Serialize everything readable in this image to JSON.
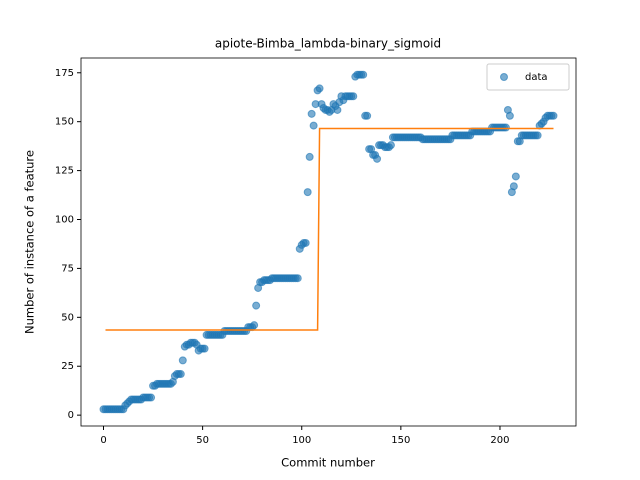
{
  "chart_data": {
    "type": "scatter",
    "title": "apiote-Bimba_lambda-binary_sigmoid",
    "xlabel": "Commit number",
    "ylabel": "Number of instance of a feature",
    "xlim": [
      -11.35,
      238.35
    ],
    "ylim": [
      -5.55,
      182.55
    ],
    "xticks": [
      0,
      50,
      100,
      150,
      200
    ],
    "yticks": [
      0,
      25,
      50,
      75,
      100,
      125,
      150,
      175
    ],
    "legend": "upper right",
    "series": [
      {
        "name": "data",
        "type": "scatter",
        "color": "#1f77b4",
        "x": [
          0,
          1,
          2,
          3,
          4,
          5,
          6,
          7,
          8,
          9,
          10,
          11,
          12,
          13,
          14,
          15,
          16,
          17,
          18,
          19,
          20,
          21,
          22,
          23,
          24,
          25,
          26,
          27,
          28,
          29,
          30,
          31,
          32,
          33,
          34,
          35,
          36,
          37,
          38,
          39,
          40,
          41,
          42,
          43,
          44,
          45,
          46,
          47,
          48,
          49,
          50,
          51,
          52,
          53,
          54,
          55,
          56,
          57,
          58,
          59,
          60,
          61,
          62,
          63,
          64,
          65,
          66,
          67,
          68,
          69,
          70,
          71,
          72,
          73,
          74,
          75,
          76,
          77,
          78,
          79,
          80,
          81,
          82,
          83,
          84,
          85,
          86,
          87,
          88,
          89,
          90,
          91,
          92,
          93,
          94,
          95,
          96,
          97,
          98,
          99,
          100,
          101,
          102,
          103,
          104,
          105,
          106,
          107,
          108,
          109,
          110,
          111,
          112,
          113,
          114,
          115,
          116,
          117,
          118,
          119,
          120,
          121,
          122,
          123,
          124,
          125,
          126,
          127,
          128,
          129,
          130,
          131,
          132,
          133,
          134,
          135,
          136,
          137,
          138,
          139,
          140,
          141,
          142,
          143,
          144,
          145,
          146,
          147,
          148,
          149,
          150,
          151,
          152,
          153,
          154,
          155,
          156,
          157,
          158,
          159,
          160,
          161,
          162,
          163,
          164,
          165,
          166,
          167,
          168,
          169,
          170,
          171,
          172,
          173,
          174,
          175,
          176,
          177,
          178,
          179,
          180,
          181,
          182,
          183,
          184,
          185,
          186,
          187,
          188,
          189,
          190,
          191,
          192,
          193,
          194,
          195,
          196,
          197,
          198,
          199,
          200,
          201,
          202,
          203,
          204,
          205,
          206,
          207,
          208,
          209,
          210,
          211,
          212,
          213,
          214,
          215,
          216,
          217,
          218,
          219,
          220,
          221,
          222,
          223,
          224,
          225,
          226,
          227
        ],
        "values": [
          3,
          3,
          3,
          3,
          3,
          3,
          3,
          3,
          3,
          3,
          3,
          5,
          6,
          7,
          8,
          8,
          8,
          8,
          8,
          8,
          9,
          9,
          9,
          9,
          9,
          15,
          15,
          16,
          16,
          16,
          16,
          16,
          16,
          16,
          16,
          17,
          20,
          21,
          21,
          21,
          28,
          35,
          36,
          36,
          37,
          37,
          37,
          36,
          33,
          34,
          34,
          34,
          41,
          41,
          41,
          41,
          41,
          41,
          41,
          41,
          41,
          43,
          43,
          43,
          43,
          43,
          43,
          43,
          43,
          43,
          43,
          43,
          43,
          45,
          45,
          45,
          46,
          56,
          65,
          68,
          68,
          69,
          69,
          69,
          69,
          70,
          70,
          70,
          70,
          70,
          70,
          70,
          70,
          70,
          70,
          70,
          70,
          70,
          70,
          85,
          87,
          88,
          88,
          114,
          132,
          154,
          148,
          159,
          166,
          167,
          159,
          157,
          156,
          156,
          155,
          156,
          159,
          158,
          156,
          160,
          163,
          161,
          163,
          163,
          163,
          163,
          163,
          173,
          174,
          174,
          174,
          174,
          153,
          153,
          136,
          136,
          133,
          133,
          131,
          138,
          138,
          138,
          137,
          137,
          137,
          138,
          142,
          142,
          142,
          142,
          142,
          142,
          142,
          142,
          142,
          142,
          142,
          142,
          142,
          142,
          142,
          141,
          141,
          141,
          141,
          141,
          141,
          141,
          141,
          141,
          141,
          141,
          141,
          141,
          141,
          141,
          143,
          143,
          143,
          143,
          143,
          143,
          143,
          143,
          143,
          143,
          145,
          145,
          145,
          145,
          145,
          145,
          145,
          145,
          145,
          145,
          147,
          147,
          147,
          147,
          147,
          147,
          147,
          147,
          156,
          153,
          114,
          117,
          122,
          140,
          140,
          143,
          143,
          143,
          143,
          143,
          143,
          143,
          143,
          143,
          148,
          149,
          150,
          152,
          153,
          153,
          153,
          153
        ]
      },
      {
        "type": "line",
        "color": "#ff7f0e",
        "x": [
          1,
          108,
          109,
          227
        ],
        "values": [
          43.5,
          43.5,
          146.5,
          146.5
        ]
      }
    ]
  }
}
